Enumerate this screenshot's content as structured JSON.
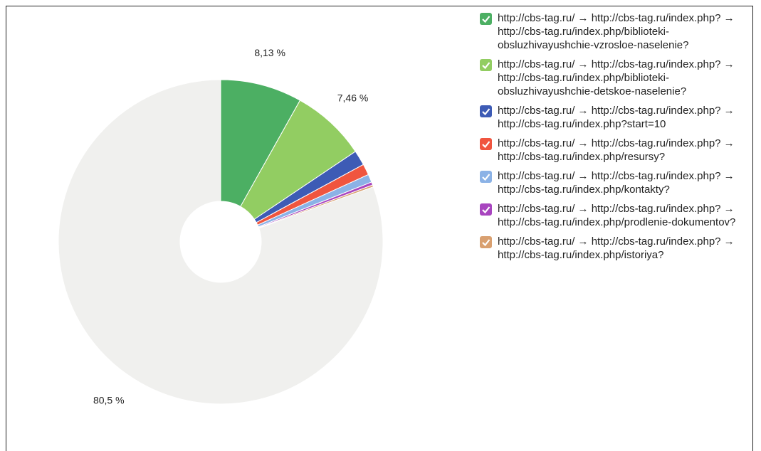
{
  "chart_data": {
    "type": "pie",
    "categories": [
      "http://cbs-tag.ru/ → http://cbs-tag.ru/index.php? → http://cbs-tag.ru/index.php/biblioteki-obsluzhivayushchie-vzrosloe-naselenie?",
      "http://cbs-tag.ru/ → http://cbs-tag.ru/index.php? → http://cbs-tag.ru/index.php/biblioteki-obsluzhivayushchie-detskoe-naselenie?",
      "http://cbs-tag.ru/ → http://cbs-tag.ru/index.php? → http://cbs-tag.ru/index.php?start=10",
      "http://cbs-tag.ru/ → http://cbs-tag.ru/index.php? → http://cbs-tag.ru/index.php/resursy?",
      "http://cbs-tag.ru/ → http://cbs-tag.ru/index.php? → http://cbs-tag.ru/index.php/kontakty?",
      "http://cbs-tag.ru/ → http://cbs-tag.ru/index.php? → http://cbs-tag.ru/index.php/prodlenie-dokumentov?",
      "http://cbs-tag.ru/ → http://cbs-tag.ru/index.php? → http://cbs-tag.ru/index.php/istoriya?",
      null
    ],
    "values": [
      8.13,
      7.46,
      1.5,
      1.1,
      0.8,
      0.3,
      0.2,
      80.5
    ],
    "value_labels": [
      "8,13 %",
      "7,46 %",
      null,
      null,
      null,
      null,
      null,
      "80,5 %"
    ],
    "colors": [
      "#4caf63",
      "#92cd62",
      "#3d5bb5",
      "#f0553f",
      "#8bb2e6",
      "#a845bf",
      "#d9a070",
      "#f0f0ee"
    ],
    "donut": true
  }
}
